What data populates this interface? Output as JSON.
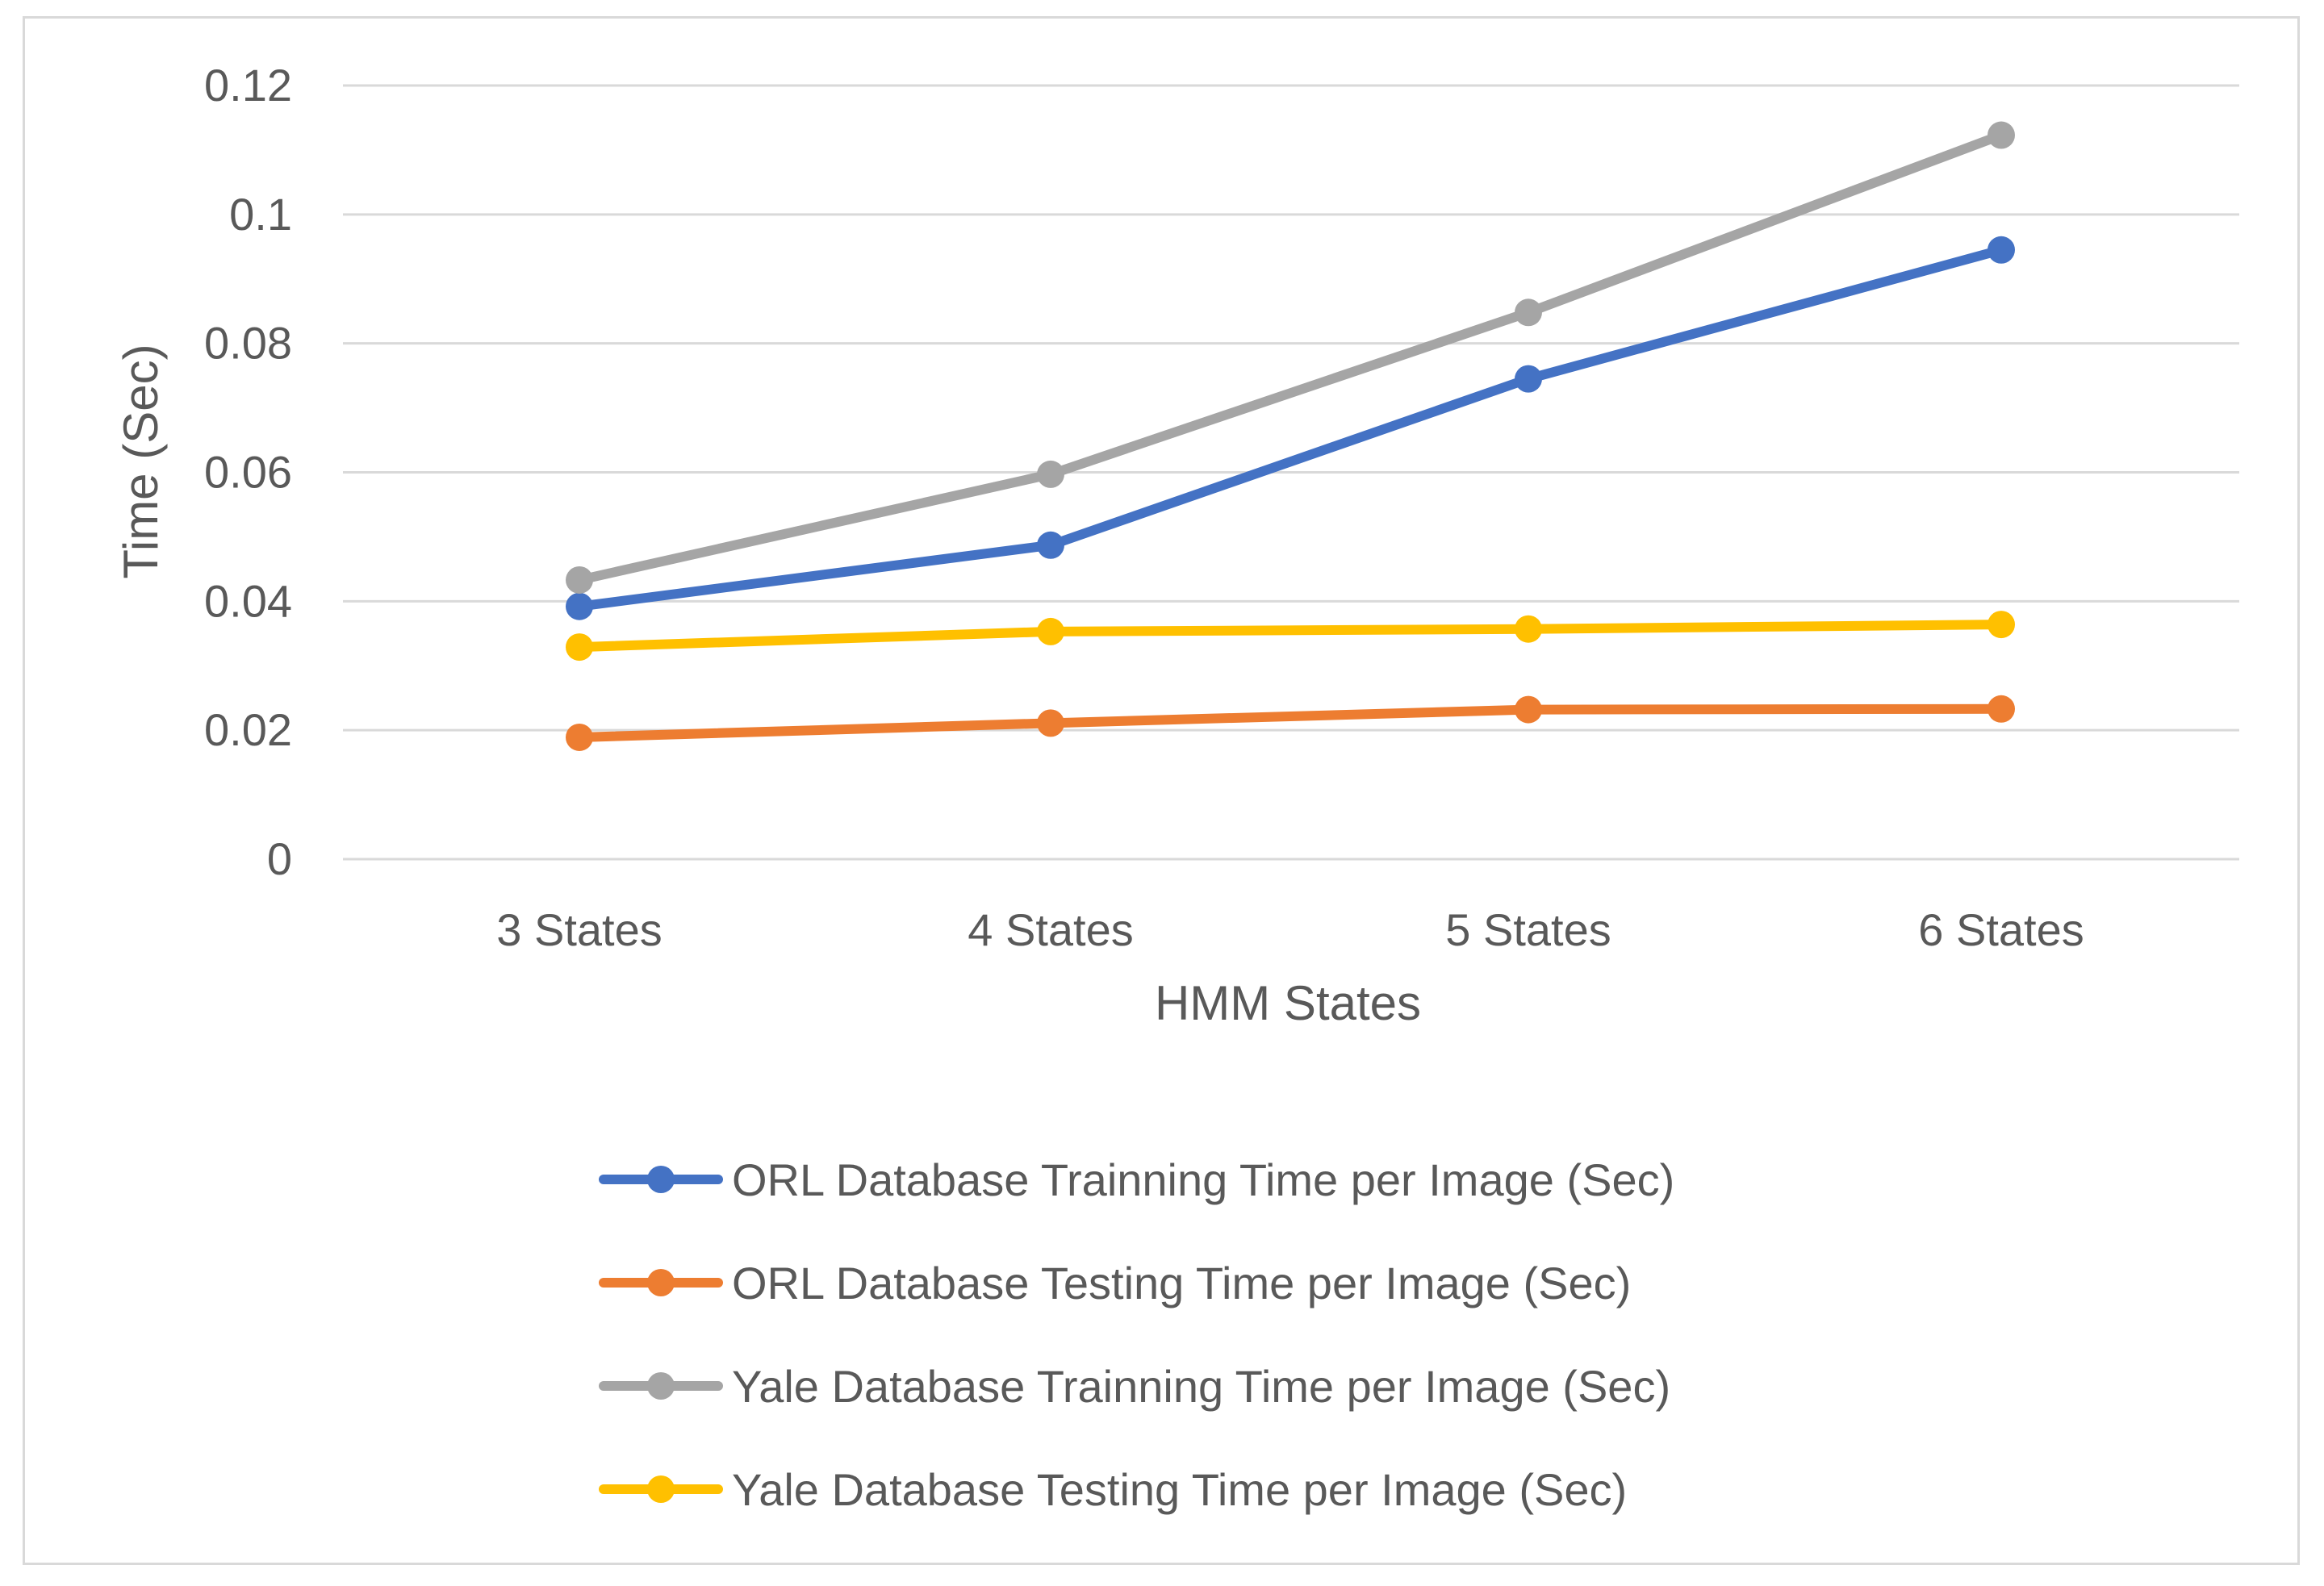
{
  "chart_data": {
    "type": "line",
    "title": "",
    "xlabel": "HMM States",
    "ylabel": "Time (Sec)",
    "categories": [
      "3 States",
      "4 States",
      "5 States",
      "6 States"
    ],
    "ylim": [
      0,
      0.12
    ],
    "yticks": [
      0,
      0.02,
      0.04,
      0.06,
      0.08,
      0.1,
      0.12
    ],
    "ytick_labels": [
      "0",
      "0.02",
      "0.04",
      "0.06",
      "0.08",
      "0.1",
      "0.12"
    ],
    "grid": true,
    "legend_position": "bottom",
    "series": [
      {
        "name": "ORL Database Trainning Time per Image (Sec)",
        "color": "#4472c4",
        "values": [
          0.0392,
          0.0487,
          0.0745,
          0.0945
        ]
      },
      {
        "name": "ORL Database Testing Time per Image (Sec)",
        "color": "#ed7d31",
        "values": [
          0.0189,
          0.0211,
          0.0232,
          0.0233
        ]
      },
      {
        "name": "Yale Database Trainning Time per Image (Sec)",
        "color": "#a5a5a5",
        "values": [
          0.0433,
          0.0597,
          0.0848,
          0.1123
        ]
      },
      {
        "name": "Yale Database Testing Time per Image (Sec)",
        "color": "#ffc000",
        "values": [
          0.0329,
          0.0353,
          0.0357,
          0.0364
        ]
      }
    ]
  }
}
